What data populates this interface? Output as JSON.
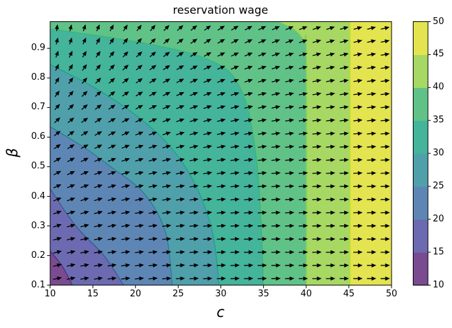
{
  "figure": {
    "title": "reservation wage",
    "background": "#ffffff"
  },
  "axes": {
    "xlabel": "c",
    "ylabel": "β",
    "x_ticks": [
      "10",
      "15",
      "20",
      "25",
      "30",
      "35",
      "40",
      "45",
      "50"
    ],
    "y_ticks": [
      "0.1",
      "0.2",
      "0.3",
      "0.4",
      "0.5",
      "0.6",
      "0.7",
      "0.8",
      "0.9"
    ],
    "x_range": [
      10,
      50
    ],
    "y_range": [
      0.1,
      0.99
    ]
  },
  "colorbar": {
    "ticks": [
      "10",
      "15",
      "20",
      "25",
      "30",
      "35",
      "40",
      "45",
      "50"
    ],
    "range": [
      10,
      50
    ],
    "position": "right"
  },
  "chart_data": {
    "type": "contour-quiver",
    "title": "reservation wage",
    "xlabel": "c",
    "ylabel": "β",
    "x_range": [
      10,
      50
    ],
    "y_range": [
      0.1,
      0.99
    ],
    "grid": false,
    "levels": [
      10,
      15,
      20,
      25,
      30,
      35,
      40,
      45,
      50
    ],
    "band_colors": [
      "#7a4b90",
      "#6c6ab0",
      "#5d86b5",
      "#4fa0aa",
      "#44b49b",
      "#60c287",
      "#a6d863",
      "#e3e44f"
    ],
    "contour_line_colors": [
      "#46327e",
      "#365c8d",
      "#277f8e",
      "#1fa187",
      "#35b779",
      "#7ad151",
      "#c8e020"
    ],
    "contours": [
      {
        "level": 15,
        "start": "left",
        "points": [
          [
            10,
            0.215
          ],
          [
            11.4,
            0.165
          ],
          [
            12.6,
            0.1
          ]
        ]
      },
      {
        "level": 20,
        "start": "left",
        "points": [
          [
            10,
            0.425
          ],
          [
            13,
            0.3
          ],
          [
            16.3,
            0.2
          ],
          [
            18.6,
            0.1
          ]
        ]
      },
      {
        "level": 25,
        "start": "left",
        "points": [
          [
            10,
            0.635
          ],
          [
            14,
            0.565
          ],
          [
            17.1,
            0.5
          ],
          [
            21,
            0.41
          ],
          [
            23.5,
            0.28
          ],
          [
            24.3,
            0.1
          ]
        ]
      },
      {
        "level": 30,
        "start": "left",
        "points": [
          [
            10,
            0.845
          ],
          [
            15,
            0.77
          ],
          [
            20,
            0.675
          ],
          [
            24,
            0.57
          ],
          [
            27,
            0.44
          ],
          [
            29,
            0.28
          ],
          [
            29.8,
            0.1
          ]
        ]
      },
      {
        "level": 35,
        "start": "left",
        "points": [
          [
            10,
            0.965
          ],
          [
            18,
            0.932
          ],
          [
            24,
            0.9
          ],
          [
            28,
            0.868
          ],
          [
            31,
            0.82
          ],
          [
            32.8,
            0.73
          ],
          [
            33.8,
            0.6
          ],
          [
            34.5,
            0.42
          ],
          [
            35.0,
            0.1
          ]
        ]
      },
      {
        "level": 40,
        "start": "top",
        "points": [
          [
            36.7,
            0.99
          ],
          [
            38.6,
            0.963
          ],
          [
            39.7,
            0.925
          ],
          [
            40,
            0.87
          ],
          [
            40,
            0.1
          ]
        ]
      },
      {
        "level": 45,
        "start": "top",
        "points": [
          [
            45.15,
            0.99
          ],
          [
            45.15,
            0.1
          ]
        ]
      }
    ],
    "quiver": {
      "cols": 25,
      "rows": 20,
      "color": "#000000",
      "description": "arrows point right at low beta / high c, rotating to vertical-up toward (c=10, beta=0.99)",
      "angle_model": {
        "theta_max_base": 14,
        "theta_max_gain": 76,
        "theta_max_pow": 1.9,
        "tau_base": 12,
        "tau_gain": 9
      }
    }
  }
}
